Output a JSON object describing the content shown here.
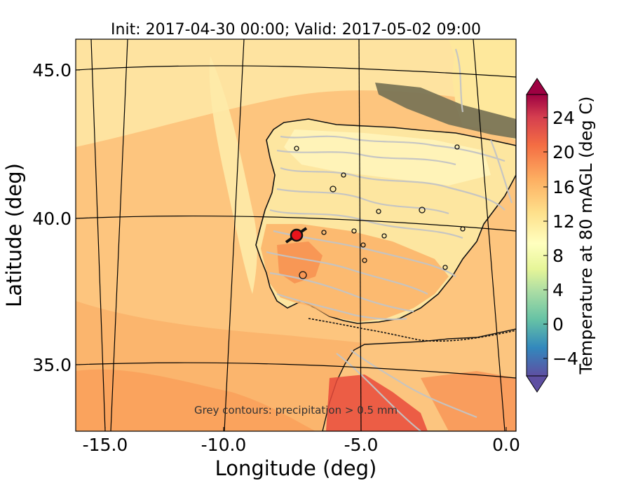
{
  "figure": {
    "title": "Init: 2017-04-30 00:00; Valid: 2017-05-02 09:00",
    "xlabel": "Longitude (deg)",
    "ylabel": "Latitude (deg)",
    "annotation": "Grey contours: precipitation  > 0.5 mm"
  },
  "map": {
    "lon_ticks": [
      "-15.0",
      "-10.0",
      "-5.0",
      "0.0"
    ],
    "lat_ticks": [
      "45.0",
      "40.0",
      "35.0"
    ],
    "lon_range": [
      -16,
      0
    ],
    "lat_range": [
      32.5,
      46
    ],
    "marker": {
      "lon": -7.7,
      "lat": 39.3,
      "color": "#e8141c"
    }
  },
  "colorbar": {
    "label": "Temperature at 80 mAGL (deg C)",
    "ticks": [
      "24",
      "20",
      "16",
      "12",
      "8",
      "4",
      "0",
      "−4"
    ],
    "range": [
      -6,
      27
    ],
    "colormap": [
      "#5e4fa2",
      "#3288bd",
      "#66c2a5",
      "#abdda4",
      "#e6f598",
      "#ffffbf",
      "#fee08b",
      "#fdae61",
      "#f46d43",
      "#d53e4f",
      "#9e0142"
    ]
  },
  "chart_data": {
    "type": "heatmap",
    "title": "Init: 2017-04-30 00:00; Valid: 2017-05-02 09:00",
    "xlabel": "Longitude (deg)",
    "ylabel": "Latitude (deg)",
    "colorbar_label": "Temperature at 80 mAGL (deg C)",
    "colorbar_range": [
      -6,
      27
    ],
    "colorbar_ticks": [
      24,
      20,
      16,
      12,
      8,
      4,
      0,
      -4
    ],
    "x_ticks": [
      -15.0,
      -10.0,
      -5.0,
      0.0
    ],
    "y_ticks": [
      45.0,
      40.0,
      35.0
    ],
    "marker": {
      "lon": -7.7,
      "lat": 39.3
    }
  }
}
